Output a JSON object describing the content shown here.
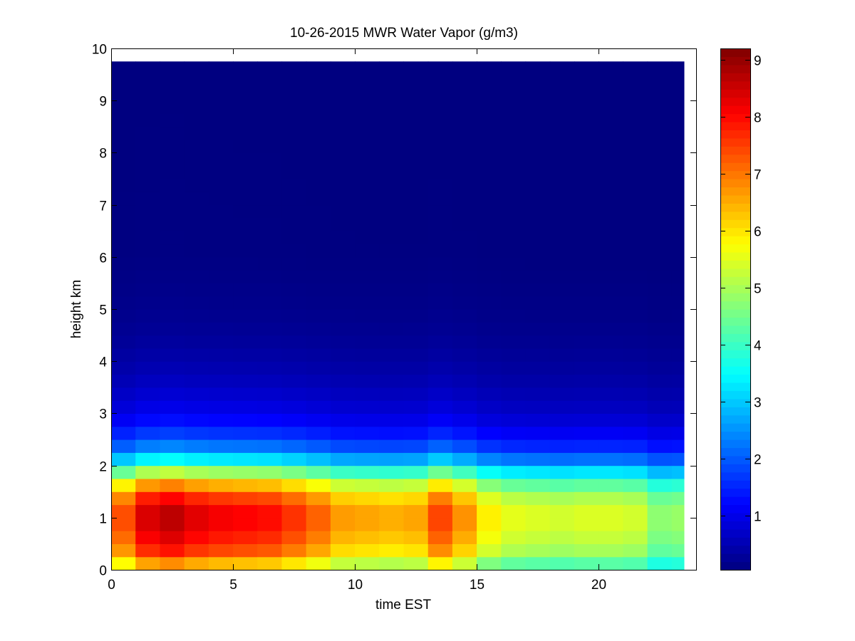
{
  "chart_data": {
    "type": "heatmap",
    "title": "10-26-2015 MWR Water Vapor (g/m3)",
    "xlabel": "time EST",
    "ylabel": "height km",
    "xlim": [
      0,
      24
    ],
    "ylim": [
      0,
      10
    ],
    "x_ticks": [
      "0",
      "5",
      "10",
      "15",
      "20"
    ],
    "y_ticks": [
      "0",
      "1",
      "2",
      "3",
      "4",
      "5",
      "6",
      "7",
      "8",
      "9",
      "10"
    ],
    "colorbar": {
      "colormap": "jet",
      "range": [
        0.05,
        9.2
      ],
      "ticks": [
        "1",
        "2",
        "3",
        "4",
        "5",
        "6",
        "7",
        "8",
        "9"
      ]
    },
    "x": [
      0,
      1,
      2,
      3,
      4,
      5,
      6,
      7,
      8,
      9,
      10,
      11,
      12,
      13,
      14,
      15,
      16,
      17,
      18,
      19,
      20,
      21,
      22,
      23
    ],
    "height_profile": [
      {
        "height": 0.0,
        "value": 6.0
      },
      {
        "height": 0.25,
        "value": 7.6
      },
      {
        "height": 0.5,
        "value": 8.2
      },
      {
        "height": 0.75,
        "value": 8.5
      },
      {
        "height": 1.0,
        "value": 8.8
      },
      {
        "height": 1.25,
        "value": 8.5
      },
      {
        "height": 1.5,
        "value": 7.6
      },
      {
        "height": 1.75,
        "value": 6.2
      },
      {
        "height": 2.0,
        "value": 4.2
      },
      {
        "height": 2.25,
        "value": 2.8
      },
      {
        "height": 2.5,
        "value": 2.0
      },
      {
        "height": 2.75,
        "value": 1.5
      },
      {
        "height": 3.0,
        "value": 1.1
      },
      {
        "height": 3.5,
        "value": 0.7
      },
      {
        "height": 4.0,
        "value": 0.45
      },
      {
        "height": 4.5,
        "value": 0.28
      },
      {
        "height": 5.0,
        "value": 0.18
      },
      {
        "height": 6.0,
        "value": 0.08
      },
      {
        "height": 9.75,
        "value": 0.05
      }
    ],
    "time_scale": [
      0.85,
      0.97,
      1.0,
      0.96,
      0.94,
      0.93,
      0.92,
      0.88,
      0.83,
      0.77,
      0.76,
      0.75,
      0.76,
      0.86,
      0.78,
      0.68,
      0.64,
      0.63,
      0.62,
      0.63,
      0.63,
      0.62,
      0.55,
      0.56
    ],
    "data_top_height": 9.75,
    "data_end_time": 23.5
  }
}
